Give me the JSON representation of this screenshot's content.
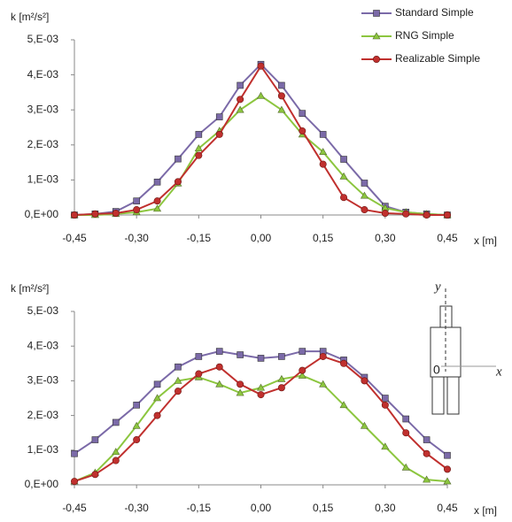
{
  "chart_data": [
    {
      "type": "line",
      "y_label": "k [m²/s²]",
      "x_label": "x [m]",
      "legend": "upper right",
      "x": [
        -0.45,
        -0.4,
        -0.35,
        -0.3,
        -0.25,
        -0.2,
        -0.15,
        -0.1,
        -0.05,
        0,
        0.05,
        0.1,
        0.15,
        0.2,
        0.25,
        0.3,
        0.35,
        0.4,
        0.45
      ],
      "xlim": [
        -0.45,
        0.45
      ],
      "xticks": [
        {
          "value": -0.45,
          "label": "-0,45"
        },
        {
          "value": -0.3,
          "label": "-0,30"
        },
        {
          "value": -0.15,
          "label": "-0,15"
        },
        {
          "value": 0,
          "label": "0,00"
        },
        {
          "value": 0.15,
          "label": "0,15"
        },
        {
          "value": 0.3,
          "label": "0,30"
        },
        {
          "value": 0.45,
          "label": "0,45"
        }
      ],
      "ylim": [
        0,
        0.005
      ],
      "yticks": [
        {
          "value": 0,
          "label": "0,E+00"
        },
        {
          "value": 0.001,
          "label": "1,E-03"
        },
        {
          "value": 0.002,
          "label": "2,E-03"
        },
        {
          "value": 0.003,
          "label": "3,E-03"
        },
        {
          "value": 0.004,
          "label": "4,E-03"
        },
        {
          "value": 0.005,
          "label": "5,E-03"
        }
      ],
      "series": [
        {
          "name": "Standard Simple",
          "color": "#7b6aa8",
          "marker": "square",
          "values": [
            0,
            3e-05,
            0.0001,
            0.0004,
            0.00094,
            0.0016,
            0.0023,
            0.0028,
            0.0037,
            0.0043,
            0.0037,
            0.0029,
            0.0023,
            0.00159,
            0.00091,
            0.00025,
            8e-05,
            3e-05,
            0
          ]
        },
        {
          "name": "RNG Simple",
          "color": "#8cc63f",
          "marker": "triangle",
          "values": [
            0,
            0,
            3e-05,
            8e-05,
            0.00018,
            0.0009,
            0.0019,
            0.0024,
            0.003,
            0.0034,
            0.003,
            0.0023,
            0.0018,
            0.0011,
            0.00055,
            0.0002,
            8e-05,
            3e-05,
            0
          ]
        },
        {
          "name": "Realizable Simple",
          "color": "#c0302e",
          "marker": "circle",
          "values": [
            0,
            3e-05,
            5e-05,
            0.00015,
            0.0004,
            0.00095,
            0.0017,
            0.0023,
            0.0033,
            0.00425,
            0.0034,
            0.0024,
            0.00145,
            0.0005,
            0.00015,
            5e-05,
            3e-05,
            0,
            0
          ]
        }
      ]
    },
    {
      "type": "line",
      "y_label": "k [m²/s²]",
      "x_label": "x [m]",
      "legend": false,
      "inset_labels": [
        "y",
        "x",
        "0"
      ],
      "x": [
        -0.45,
        -0.4,
        -0.35,
        -0.3,
        -0.25,
        -0.2,
        -0.15,
        -0.1,
        -0.05,
        0,
        0.05,
        0.1,
        0.15,
        0.2,
        0.25,
        0.3,
        0.35,
        0.4,
        0.45
      ],
      "xlim": [
        -0.45,
        0.45
      ],
      "xticks": [
        {
          "value": -0.45,
          "label": "-0,45"
        },
        {
          "value": -0.3,
          "label": "-0,30"
        },
        {
          "value": -0.15,
          "label": "-0,15"
        },
        {
          "value": 0,
          "label": "0,00"
        },
        {
          "value": 0.15,
          "label": "0,15"
        },
        {
          "value": 0.3,
          "label": "0,30"
        },
        {
          "value": 0.45,
          "label": "0,45"
        }
      ],
      "ylim": [
        0,
        0.005
      ],
      "yticks": [
        {
          "value": 0,
          "label": "0,E+00"
        },
        {
          "value": 0.001,
          "label": "1,E-03"
        },
        {
          "value": 0.002,
          "label": "2,E-03"
        },
        {
          "value": 0.003,
          "label": "3,E-03"
        },
        {
          "value": 0.004,
          "label": "4,E-03"
        },
        {
          "value": 0.005,
          "label": "5,E-03"
        }
      ],
      "series": [
        {
          "name": "Standard Simple",
          "color": "#7b6aa8",
          "marker": "square",
          "values": [
            0.0009,
            0.0013,
            0.0018,
            0.0023,
            0.0029,
            0.0034,
            0.0037,
            0.00385,
            0.00375,
            0.00365,
            0.0037,
            0.00385,
            0.00385,
            0.0036,
            0.0031,
            0.0025,
            0.0019,
            0.0013,
            0.00085
          ]
        },
        {
          "name": "RNG Simple",
          "color": "#8cc63f",
          "marker": "triangle",
          "values": [
            0.0001,
            0.00035,
            0.00095,
            0.0017,
            0.0025,
            0.003,
            0.0031,
            0.0029,
            0.00265,
            0.0028,
            0.00305,
            0.00315,
            0.0029,
            0.0023,
            0.0017,
            0.0011,
            0.0005,
            0.00015,
            0.0001
          ]
        },
        {
          "name": "Realizable Simple",
          "color": "#c0302e",
          "marker": "circle",
          "values": [
            0.0001,
            0.0003,
            0.0007,
            0.0013,
            0.002,
            0.0027,
            0.0032,
            0.0034,
            0.0029,
            0.0026,
            0.0028,
            0.0033,
            0.0037,
            0.0035,
            0.003,
            0.0023,
            0.0015,
            0.0009,
            0.00045
          ]
        }
      ]
    }
  ]
}
